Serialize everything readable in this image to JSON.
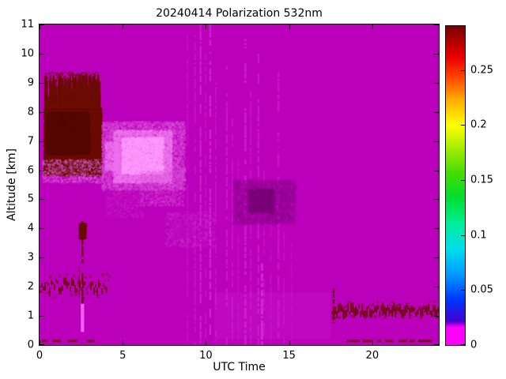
{
  "chart_data": {
    "type": "heatmap",
    "title": "20240414 Polarization 532nm",
    "xlabel": "UTC Time",
    "ylabel": "Altitude [km]",
    "xlim": [
      0,
      24
    ],
    "ylim": [
      0,
      11
    ],
    "xticks": [
      0,
      5,
      10,
      15,
      20
    ],
    "yticks": [
      0,
      1,
      2,
      3,
      4,
      5,
      6,
      7,
      8,
      9,
      10,
      11
    ],
    "grid": false,
    "background_value": 0,
    "colors": {
      "background": "#BB00BB",
      "high_value": "#6B0C03",
      "bright_low": "#FF7BFF",
      "axis": "#000000"
    },
    "colorbar": {
      "min": 0,
      "max": 0.29,
      "ticks": [
        0,
        0.05,
        0.1,
        0.15,
        0.2,
        0.25
      ],
      "stops": [
        [
          0.0,
          "#FF00FF"
        ],
        [
          0.055,
          "#FF00FF"
        ],
        [
          0.075,
          "#4400CC"
        ],
        [
          0.14,
          "#0033FF"
        ],
        [
          0.22,
          "#0099FF"
        ],
        [
          0.3,
          "#00DDEE"
        ],
        [
          0.38,
          "#00EE99"
        ],
        [
          0.46,
          "#00DD33"
        ],
        [
          0.54,
          "#44DD00"
        ],
        [
          0.62,
          "#AAEE00"
        ],
        [
          0.69,
          "#FFFF00"
        ],
        [
          0.77,
          "#FFAA00"
        ],
        [
          0.84,
          "#FF4400"
        ],
        [
          0.9,
          "#EE0000"
        ],
        [
          1.0,
          "#770000"
        ]
      ]
    },
    "features": [
      {
        "type": "noise",
        "seed": 11,
        "x": [
          0.25,
          3.65
        ],
        "y": [
          6.25,
          8.15
        ],
        "count": 16000,
        "size": 2.2,
        "color": "#6B0C03",
        "alpha": 0.9,
        "alphaVar": true
      },
      {
        "type": "noise",
        "seed": 12,
        "x": [
          0.4,
          2.9
        ],
        "y": [
          6.6,
          8.0
        ],
        "count": 9000,
        "size": 2.5,
        "color": "#570801",
        "alpha": 0.9,
        "alphaVar": true
      },
      {
        "type": "spikes",
        "seed": 13,
        "x": [
          0.25,
          3.6
        ],
        "baseY": 8.1,
        "dir": "up",
        "count": 260,
        "maxLen": 1.25,
        "width": 2,
        "color": "#6B0C03",
        "alpha": 0.8
      },
      {
        "type": "noise",
        "seed": 14,
        "x": [
          0.3,
          3.5
        ],
        "y": [
          8.3,
          9.4
        ],
        "count": 700,
        "size": 1.8,
        "color": "#6B0C03",
        "alpha": 0.55,
        "alphaVar": true
      },
      {
        "type": "spikes",
        "seed": 15,
        "x": [
          0.25,
          3.6
        ],
        "baseY": 6.3,
        "dir": "down",
        "count": 200,
        "maxLen": 0.55,
        "width": 2,
        "color": "#6B0C03",
        "alpha": 0.8
      },
      {
        "type": "noise",
        "seed": 16,
        "x": [
          0.2,
          3.7
        ],
        "y": [
          5.85,
          6.35
        ],
        "count": 1800,
        "size": 2,
        "color": "#6B0C03",
        "alpha": 0.5,
        "alphaVar": true
      },
      {
        "type": "noise",
        "seed": 17,
        "x": [
          0.1,
          3.8
        ],
        "y": [
          5.6,
          6.4
        ],
        "count": 1200,
        "size": 2,
        "color": "#E36BE3",
        "alpha": 0.3,
        "alphaVar": true
      },
      {
        "type": "noise",
        "seed": 18,
        "x": [
          3.7,
          8.7
        ],
        "y": [
          5.35,
          7.7
        ],
        "count": 7000,
        "size": 2.2,
        "color": "#DD55DD",
        "alpha": 0.3,
        "alphaVar": true
      },
      {
        "type": "noise",
        "seed": 19,
        "x": [
          4.4,
          7.9
        ],
        "y": [
          5.6,
          7.4
        ],
        "count": 6000,
        "size": 2.2,
        "color": "#F075F0",
        "alpha": 0.45,
        "alphaVar": true
      },
      {
        "type": "noise",
        "seed": 20,
        "x": [
          4.9,
          7.4
        ],
        "y": [
          5.9,
          7.15
        ],
        "count": 3500,
        "size": 2,
        "color": "#FF9BFF",
        "alpha": 0.5,
        "alphaVar": true
      },
      {
        "type": "noise",
        "seed": 21,
        "x": [
          6.0,
          8.6
        ],
        "y": [
          4.8,
          6.0
        ],
        "count": 1500,
        "size": 2,
        "color": "#DD55DD",
        "alpha": 0.2,
        "alphaVar": true
      },
      {
        "type": "noise",
        "seed": 22,
        "x": [
          3.9,
          4.7
        ],
        "y": [
          6.0,
          7.0
        ],
        "count": 900,
        "size": 2,
        "color": "#F075F0",
        "alpha": 0.4,
        "alphaVar": true
      },
      {
        "type": "noise",
        "seed": 58,
        "x": [
          3.9,
          6.2
        ],
        "y": [
          4.4,
          5.4
        ],
        "count": 700,
        "size": 2,
        "color": "#DD55DD",
        "alpha": 0.12,
        "alphaVar": true
      },
      {
        "type": "noise",
        "seed": 57,
        "x": [
          7.5,
          10.5
        ],
        "y": [
          3.4,
          4.6
        ],
        "count": 800,
        "size": 2.5,
        "color": "#DD55DD",
        "alpha": 0.12,
        "alphaVar": true
      },
      {
        "type": "hband",
        "seed": 23,
        "x": [
          0,
          4.15
        ],
        "yCenter": 2.0,
        "amp": 0.22,
        "tMin": 0.04,
        "tMax": 0.3,
        "step": 2,
        "color": "#6B0C03",
        "alpha": 0.85
      },
      {
        "type": "hband",
        "seed": 24,
        "x": [
          0,
          4.15
        ],
        "yCenter": 2.0,
        "amp": 0.45,
        "tMin": 0.02,
        "tMax": 0.12,
        "step": 3,
        "color": "#6B0C03",
        "alpha": 0.5
      },
      {
        "type": "vline",
        "seed": 25,
        "x": 2.52,
        "y": [
          0.35,
          4.25
        ],
        "width": 2.5,
        "color": "#6B0C03",
        "alpha": 0.9,
        "broken": true,
        "density": 0.85
      },
      {
        "type": "noise",
        "seed": 26,
        "x": [
          2.35,
          2.7
        ],
        "y": [
          3.7,
          4.2
        ],
        "count": 250,
        "size": 2.5,
        "color": "#6B0C03",
        "alpha": 0.8,
        "alphaVar": true
      },
      {
        "type": "vline",
        "seed": 27,
        "x": 2.33,
        "y": [
          1.4,
          2.7
        ],
        "width": 2,
        "color": "#6B0C03",
        "alpha": 0.6,
        "broken": true,
        "density": 0.6
      },
      {
        "type": "fill",
        "x": [
          2.48,
          2.68
        ],
        "y": [
          0.45,
          1.42
        ],
        "color": "#FF66FF",
        "alpha": 0.9
      },
      {
        "type": "fill",
        "x": [
          10.5,
          17.5
        ],
        "y": [
          0.2,
          1.8
        ],
        "color": "#D633D6",
        "alpha": 0.15
      },
      {
        "type": "vline",
        "seed": 30,
        "x": 8.85,
        "y": [
          0,
          11
        ],
        "width": 2,
        "color": "#FF7BFF",
        "alpha": 0.1,
        "broken": true,
        "density": 0.8
      },
      {
        "type": "vline",
        "seed": 31,
        "x": 9.3,
        "y": [
          0,
          11
        ],
        "width": 2,
        "color": "#FF7BFF",
        "alpha": 0.14,
        "broken": true,
        "density": 0.8
      },
      {
        "type": "vline",
        "seed": 32,
        "x": 9.62,
        "y": [
          0,
          11
        ],
        "width": 2.5,
        "color": "#FF7BFF",
        "alpha": 0.22,
        "broken": true,
        "density": 0.85
      },
      {
        "type": "vline",
        "seed": 33,
        "x": 9.95,
        "y": [
          0,
          10
        ],
        "width": 2,
        "color": "#FF7BFF",
        "alpha": 0.12,
        "broken": true,
        "density": 0.8
      },
      {
        "type": "vline",
        "seed": 34,
        "x": 10.2,
        "y": [
          0,
          11
        ],
        "width": 2.5,
        "color": "#FF7BFF",
        "alpha": 0.25,
        "broken": true,
        "density": 0.85
      },
      {
        "type": "vline",
        "seed": 35,
        "x": 10.55,
        "y": [
          0,
          9
        ],
        "width": 2,
        "color": "#FF7BFF",
        "alpha": 0.12,
        "broken": true,
        "density": 0.8
      },
      {
        "type": "vline",
        "seed": 36,
        "x": 11.2,
        "y": [
          0,
          10.5
        ],
        "width": 2.5,
        "color": "#FF7BFF",
        "alpha": 0.16,
        "broken": true,
        "density": 0.8
      },
      {
        "type": "vline",
        "seed": 37,
        "x": 11.55,
        "y": [
          0,
          8
        ],
        "width": 2,
        "color": "#FF7BFF",
        "alpha": 0.14,
        "broken": true,
        "density": 0.8
      },
      {
        "type": "vline",
        "seed": 38,
        "x": 11.9,
        "y": [
          0,
          7
        ],
        "width": 2,
        "color": "#FF7BFF",
        "alpha": 0.1,
        "broken": true,
        "density": 0.8
      },
      {
        "type": "vline",
        "seed": 39,
        "x": 12.3,
        "y": [
          0,
          10.5
        ],
        "width": 3,
        "color": "#FF7BFF",
        "alpha": 0.2,
        "broken": true,
        "density": 0.85
      },
      {
        "type": "vline",
        "seed": 40,
        "x": 12.65,
        "y": [
          0,
          9
        ],
        "width": 2,
        "color": "#FF7BFF",
        "alpha": 0.14,
        "broken": true,
        "density": 0.8
      },
      {
        "type": "vline",
        "seed": 41,
        "x": 13.1,
        "y": [
          0,
          10
        ],
        "width": 2.5,
        "color": "#FF7BFF",
        "alpha": 0.18,
        "broken": true,
        "density": 0.8
      },
      {
        "type": "vline",
        "seed": 42,
        "x": 13.3,
        "y": [
          0,
          2.8
        ],
        "width": 3,
        "color": "#FF7BFF",
        "alpha": 0.3,
        "broken": true,
        "density": 0.9
      },
      {
        "type": "vline",
        "seed": 43,
        "x": 13.45,
        "y": [
          0,
          6
        ],
        "width": 2,
        "color": "#FF7BFF",
        "alpha": 0.12,
        "broken": true,
        "density": 0.8
      },
      {
        "type": "vline",
        "seed": 44,
        "x": 13.85,
        "y": [
          0,
          5
        ],
        "width": 2,
        "color": "#FF7BFF",
        "alpha": 0.1,
        "broken": true,
        "density": 0.8
      },
      {
        "type": "vline",
        "seed": 45,
        "x": 14.3,
        "y": [
          0,
          9.5
        ],
        "width": 2.5,
        "color": "#FF7BFF",
        "alpha": 0.16,
        "broken": true,
        "density": 0.8
      },
      {
        "type": "vline",
        "seed": 46,
        "x": 14.65,
        "y": [
          0,
          4
        ],
        "width": 2,
        "color": "#FF7BFF",
        "alpha": 0.1,
        "broken": true,
        "density": 0.8
      },
      {
        "type": "vline",
        "seed": 47,
        "x": 15.1,
        "y": [
          0,
          3.5
        ],
        "width": 2,
        "color": "#FF7BFF",
        "alpha": 0.08,
        "broken": true,
        "density": 0.8
      },
      {
        "type": "noise",
        "seed": 50,
        "x": [
          11.6,
          15.3
        ],
        "y": [
          4.2,
          5.7
        ],
        "count": 2500,
        "size": 3,
        "color": "#8E008E",
        "alpha": 0.25,
        "alphaVar": true
      },
      {
        "type": "noise",
        "seed": 51,
        "x": [
          12.5,
          14.0
        ],
        "y": [
          4.6,
          5.4
        ],
        "count": 1200,
        "size": 3,
        "color": "#7A007A",
        "alpha": 0.25,
        "alphaVar": true
      },
      {
        "type": "hband",
        "seed": 52,
        "x": [
          17.55,
          24
        ],
        "yCenter": 1.18,
        "amp": 0.13,
        "tMin": 0.1,
        "tMax": 0.42,
        "step": 2,
        "color": "#6B0C03",
        "alpha": 0.9
      },
      {
        "type": "hband",
        "seed": 53,
        "x": [
          17.55,
          24
        ],
        "yCenter": 1.2,
        "amp": 0.3,
        "tMin": 0.02,
        "tMax": 0.1,
        "step": 3,
        "color": "#6B0C03",
        "alpha": 0.5
      },
      {
        "type": "vline",
        "seed": 59,
        "x": 17.62,
        "y": [
          0.75,
          1.95
        ],
        "width": 2.5,
        "color": "#6B0C03",
        "alpha": 0.9,
        "broken": true,
        "density": 0.9
      },
      {
        "type": "dashes",
        "seed": 54,
        "x": [
          0.15,
          3.4
        ],
        "y": 0.14,
        "thicknessPx": 3,
        "segMax": 14,
        "gapMax": 10,
        "density": 0.75,
        "color": "#6B0C03",
        "alpha": 0.85
      },
      {
        "type": "dashes",
        "seed": 55,
        "x": [
          17.6,
          23.95
        ],
        "y": 0.14,
        "thicknessPx": 3,
        "segMax": 16,
        "gapMax": 8,
        "density": 0.8,
        "color": "#6B0C03",
        "alpha": 0.85
      },
      {
        "type": "dashes",
        "seed": 56,
        "x": [
          9.8,
          10.9
        ],
        "y": 0.14,
        "thicknessPx": 2,
        "segMax": 6,
        "gapMax": 14,
        "density": 0.4,
        "color": "#6B0C03",
        "alpha": 0.6
      }
    ]
  }
}
